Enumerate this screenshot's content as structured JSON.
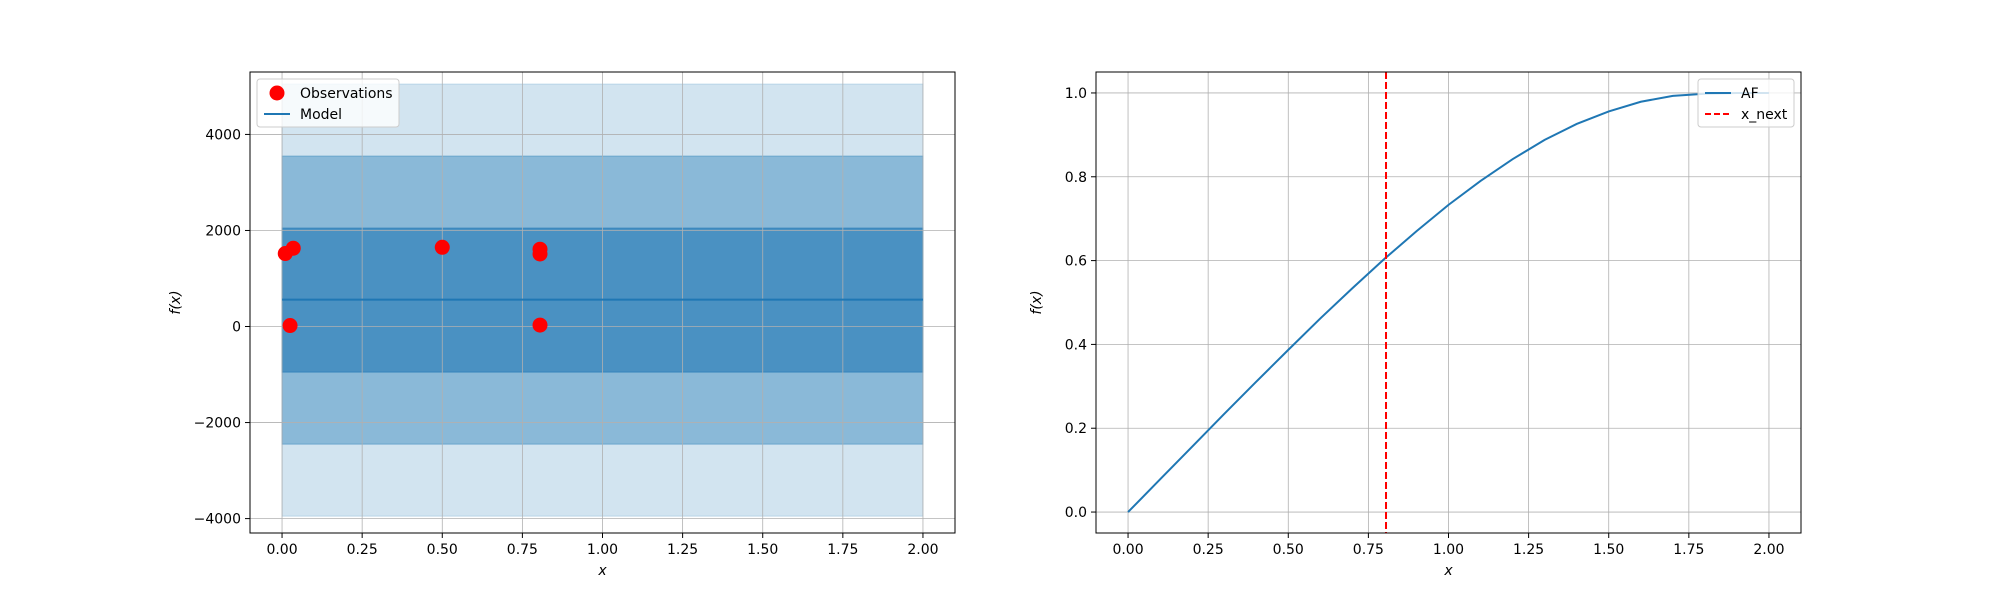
{
  "chart_data": [
    {
      "type": "scatter",
      "title": "",
      "xlabel": "x",
      "ylabel": "f(x)",
      "xlim": [
        -0.1,
        2.1
      ],
      "ylim": [
        -4300,
        5300
      ],
      "x_ticks": [
        "0.00",
        "0.25",
        "0.50",
        "0.75",
        "1.00",
        "1.25",
        "1.50",
        "1.75",
        "2.00"
      ],
      "x_tick_values": [
        0,
        0.25,
        0.5,
        0.75,
        1.0,
        1.25,
        1.5,
        1.75,
        2.0
      ],
      "y_ticks": [
        "−4000",
        "−2000",
        "0",
        "2000",
        "4000"
      ],
      "y_tick_values": [
        -4000,
        -2000,
        0,
        2000,
        4000
      ],
      "grid": true,
      "legend_position": "top-left",
      "legend": [
        {
          "label": "Observations",
          "type": "marker",
          "color": "#ff0000"
        },
        {
          "label": "Model",
          "type": "line",
          "color": "#1f77b4"
        }
      ],
      "series": [
        {
          "name": "Observations",
          "type": "scatter",
          "color": "#ff0000",
          "points": [
            {
              "x": 0.01,
              "y": 1520
            },
            {
              "x": 0.035,
              "y": 1630
            },
            {
              "x": 0.025,
              "y": 20
            },
            {
              "x": 0.5,
              "y": 1650
            },
            {
              "x": 0.805,
              "y": 1610
            },
            {
              "x": 0.805,
              "y": 1510
            },
            {
              "x": 0.805,
              "y": 30
            }
          ]
        },
        {
          "name": "Model",
          "type": "line",
          "color": "#1f77b4",
          "x": [
            0,
            2
          ],
          "y": [
            560,
            560
          ]
        }
      ],
      "bands": [
        {
          "x": [
            0,
            2
          ],
          "low": -3950,
          "high": 5050,
          "color": "#1f77b4",
          "opacity": 0.2
        },
        {
          "x": [
            0,
            2
          ],
          "low": -2450,
          "high": 3550,
          "color": "#1f77b4",
          "opacity": 0.4
        },
        {
          "x": [
            0,
            2
          ],
          "low": -950,
          "high": 2050,
          "color": "#1f77b4",
          "opacity": 0.6
        }
      ]
    },
    {
      "type": "line",
      "title": "",
      "xlabel": "x",
      "ylabel": "f(x)",
      "xlim": [
        -0.1,
        2.1
      ],
      "ylim": [
        -0.05,
        1.05
      ],
      "x_ticks": [
        "0.00",
        "0.25",
        "0.50",
        "0.75",
        "1.00",
        "1.25",
        "1.50",
        "1.75",
        "2.00"
      ],
      "x_tick_values": [
        0,
        0.25,
        0.5,
        0.75,
        1.0,
        1.25,
        1.5,
        1.75,
        2.0
      ],
      "y_ticks": [
        "0.0",
        "0.2",
        "0.4",
        "0.6",
        "0.8",
        "1.0"
      ],
      "y_tick_values": [
        0,
        0.2,
        0.4,
        0.6,
        0.8,
        1.0
      ],
      "grid": true,
      "legend_position": "top-right",
      "legend": [
        {
          "label": "AF",
          "type": "line",
          "color": "#1f77b4"
        },
        {
          "label": "x_next",
          "type": "dashed",
          "color": "#ff0000"
        }
      ],
      "series": [
        {
          "name": "AF",
          "type": "line",
          "color": "#1f77b4",
          "x": [
            0,
            0.1,
            0.2,
            0.3,
            0.4,
            0.5,
            0.6,
            0.7,
            0.8,
            0.9,
            1.0,
            1.1,
            1.2,
            1.3,
            1.4,
            1.5,
            1.6,
            1.7,
            1.8,
            1.9,
            2.0
          ],
          "y": [
            0,
            0.078,
            0.156,
            0.234,
            0.311,
            0.387,
            0.462,
            0.534,
            0.604,
            0.67,
            0.733,
            0.79,
            0.842,
            0.888,
            0.926,
            0.956,
            0.979,
            0.993,
            0.998,
            1.0,
            1.0
          ]
        },
        {
          "name": "x_next",
          "type": "vline",
          "color": "#ff0000",
          "dashed": true,
          "x": 0.805
        }
      ]
    }
  ]
}
